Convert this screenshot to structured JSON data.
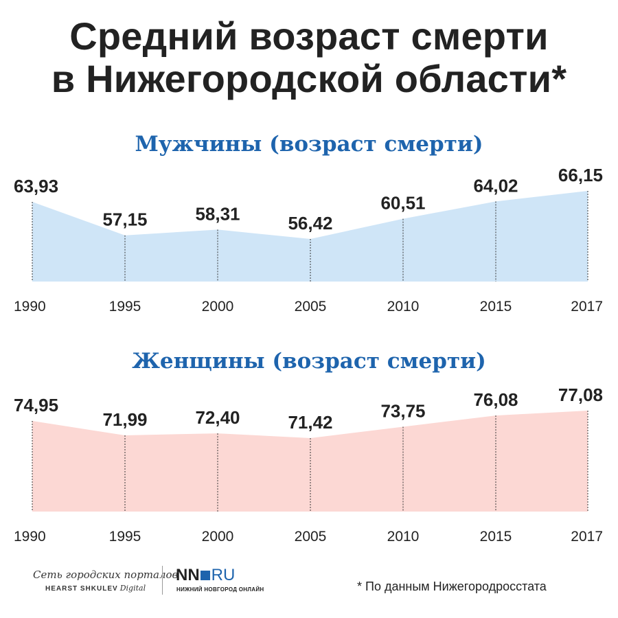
{
  "title": {
    "line1": "Средний возраст смерти",
    "line2": "в Нижегородской области*"
  },
  "chart_data": [
    {
      "type": "area",
      "title": "Мужчины (возраст смерти)",
      "x": [
        "1990",
        "1995",
        "2000",
        "2005",
        "2010",
        "2015",
        "2017"
      ],
      "values": [
        63.93,
        57.15,
        58.31,
        56.42,
        60.51,
        64.02,
        66.15
      ],
      "value_labels": [
        "63,93",
        "57,15",
        "58,31",
        "56,42",
        "60,51",
        "64,02",
        "66,15"
      ],
      "fill_color": "#cfe5f7",
      "gridlines": "dotted vertical at each year"
    },
    {
      "type": "area",
      "title": "Женщины (возраст смерти)",
      "x": [
        "1990",
        "1995",
        "2000",
        "2005",
        "2010",
        "2015",
        "2017"
      ],
      "values": [
        74.95,
        71.99,
        72.4,
        71.42,
        73.75,
        76.08,
        77.08
      ],
      "value_labels": [
        "74,95",
        "71,99",
        "72,40",
        "71,42",
        "73,75",
        "76,08",
        "77,08"
      ],
      "fill_color": "#fcd8d4",
      "gridlines": "dotted vertical at each year"
    }
  ],
  "footer": {
    "logo1_line1": "Сеть городских порталов",
    "logo1_line2": "HEARST SHKULEV",
    "logo1_digital": "Digital",
    "logo2_nn": "NN",
    "logo2_ru": "RU",
    "logo2_sub": "НИЖНИЙ НОВГОРОД ОНЛАЙН",
    "footnote": "* По данным Нижегородросстата"
  },
  "colors": {
    "title": "#222222",
    "chart_title": "#1e64ad",
    "brand_blue": "#1e64ad"
  }
}
